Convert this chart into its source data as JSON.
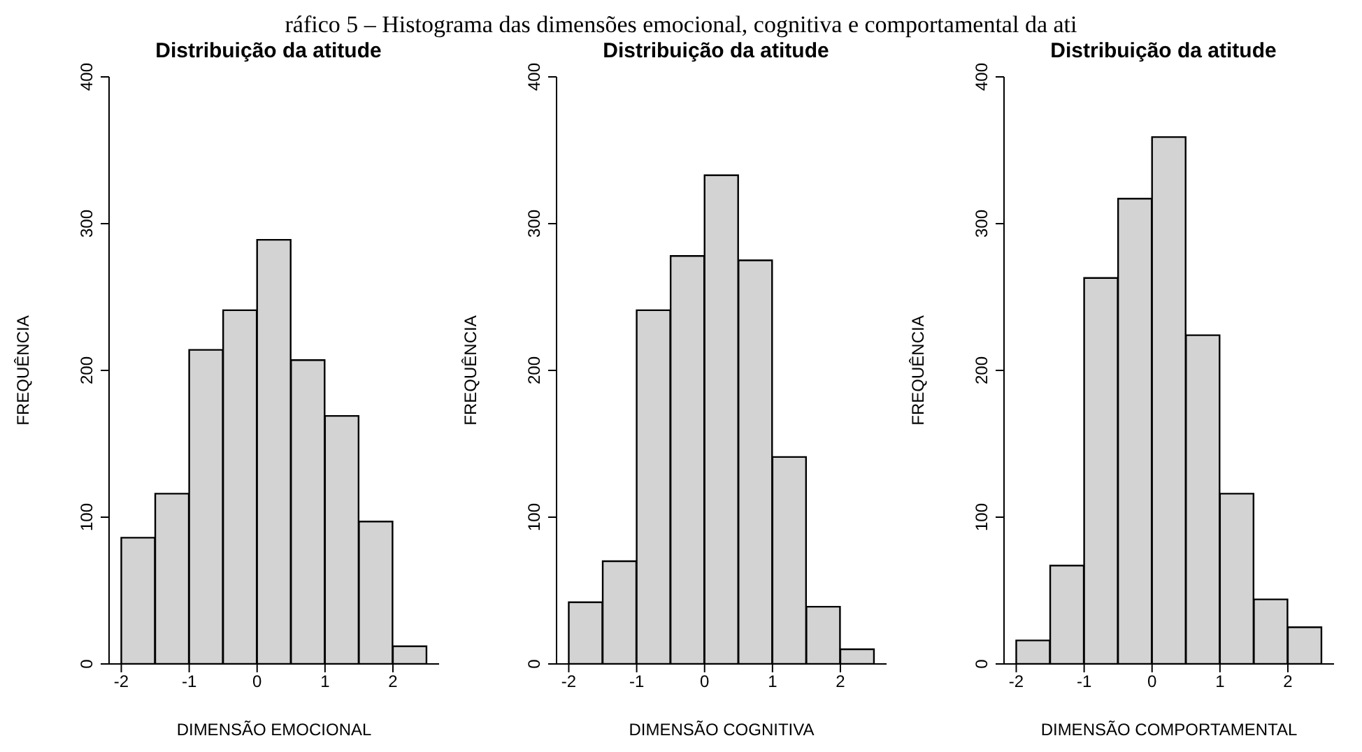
{
  "chart_data": [
    {
      "type": "histogram",
      "title": "Distribuição da atitude",
      "xlabel": "DIMENSÃO EMOCIONAL",
      "ylabel": "FREQUÊNCIA",
      "annotations": [
        "ráfico 5 – Histograma das dimensões emocional, cognitiva e comportamental da ati"
      ],
      "bins": [
        -2,
        -1.5,
        -1,
        -0.5,
        0,
        0.5,
        1,
        1.5,
        2,
        2.5
      ],
      "values": [
        86,
        116,
        214,
        241,
        289,
        207,
        169,
        97,
        12
      ],
      "color": "#d3d3d3",
      "xlim": [
        -2.18,
        2.68
      ],
      "xticks": [
        -2,
        -1,
        0,
        1,
        2
      ],
      "ylim": [
        0,
        400
      ],
      "yticks": [
        0,
        100,
        200,
        300,
        400
      ],
      "grid": false
    },
    {
      "type": "histogram",
      "title": "Distribuição da atitude",
      "xlabel": "DIMENSÃO COGNITIVA",
      "ylabel": "FREQUÊNCIA",
      "bins": [
        -2,
        -1.5,
        -1,
        -0.5,
        0,
        0.5,
        1,
        1.5,
        2,
        2.5
      ],
      "values": [
        42,
        70,
        241,
        278,
        333,
        275,
        141,
        39,
        10
      ],
      "color": "#d3d3d3",
      "xlim": [
        -2.18,
        2.68
      ],
      "xticks": [
        -2,
        -1,
        0,
        1,
        2
      ],
      "ylim": [
        0,
        400
      ],
      "yticks": [
        0,
        100,
        200,
        300,
        400
      ],
      "grid": false
    },
    {
      "type": "histogram",
      "title": "Distribuição da atitude",
      "xlabel": "DIMENSÃO COMPORTAMENTAL",
      "ylabel": "FREQUÊNCIA",
      "bins": [
        -2,
        -1.5,
        -1,
        -0.5,
        0,
        0.5,
        1,
        1.5,
        2,
        2.5
      ],
      "values": [
        16,
        67,
        263,
        317,
        359,
        224,
        116,
        44,
        25
      ],
      "color": "#d3d3d3",
      "xlim": [
        -2.18,
        2.68
      ],
      "xticks": [
        -2,
        -1,
        0,
        1,
        2
      ],
      "ylim": [
        0,
        400
      ],
      "yticks": [
        0,
        100,
        200,
        300,
        400
      ],
      "grid": false
    }
  ]
}
